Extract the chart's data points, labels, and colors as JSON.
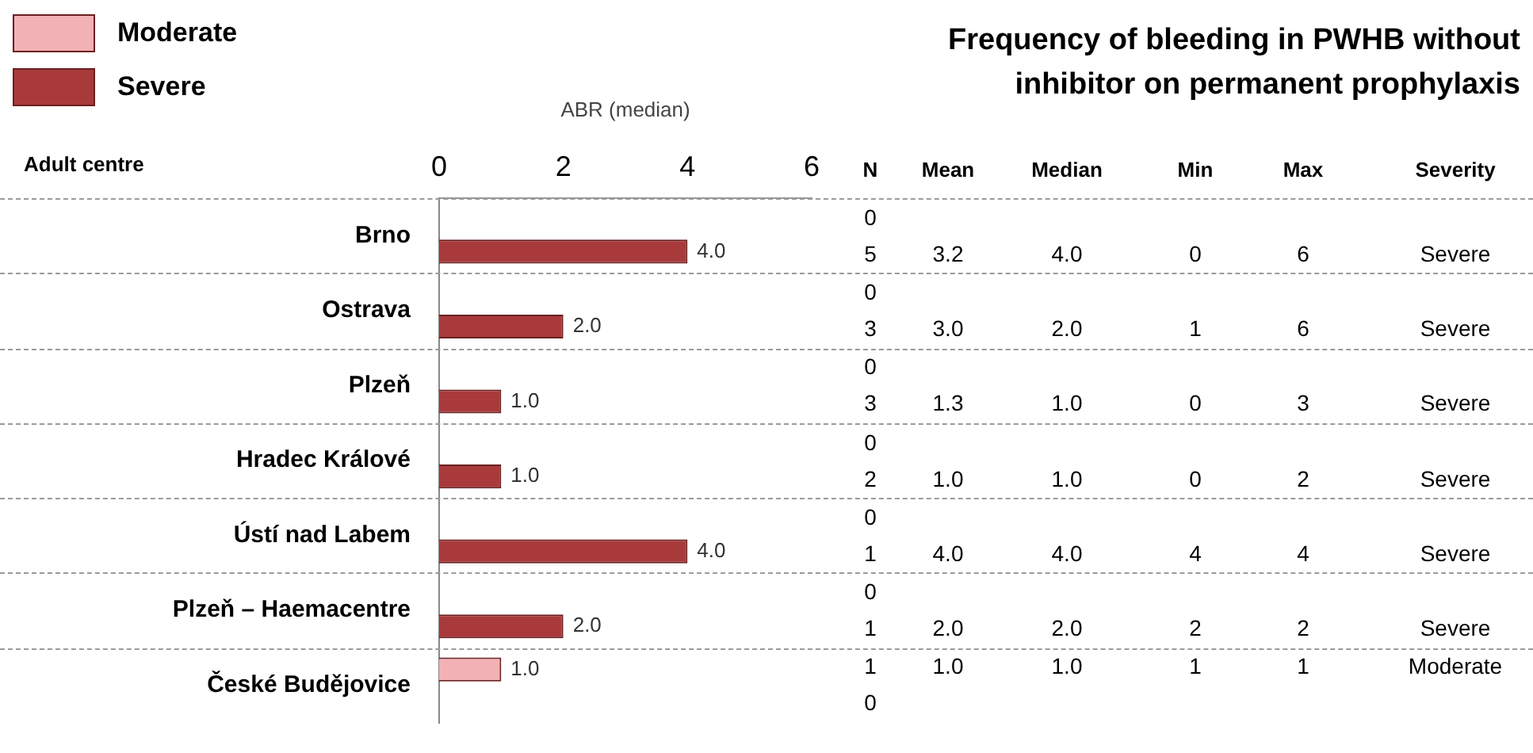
{
  "chart_data": {
    "type": "bar",
    "orientation": "horizontal",
    "title": "Frequency of bleeding in PWHB without inhibitor on permanent prophylaxis",
    "xlabel": "ABR (median)",
    "ylabel": "Adult centre",
    "categories": [
      "Brno",
      "Ostrava",
      "Plzeň",
      "Hradec Králové",
      "Ústí nad Labem",
      "Plzeň – Haemacentre",
      "České Budějovice"
    ],
    "series": [
      {
        "name": "Moderate",
        "color": "#f2b1b5",
        "values": [
          null,
          null,
          null,
          null,
          null,
          null,
          1.0
        ],
        "value_labels": [
          null,
          null,
          null,
          null,
          null,
          null,
          "1.0"
        ]
      },
      {
        "name": "Severe",
        "color": "#a83a3c",
        "values": [
          4.0,
          2.0,
          1.0,
          1.0,
          4.0,
          2.0,
          null
        ],
        "value_labels": [
          "4.0",
          "2.0",
          "1.0",
          "1.0",
          "4.0",
          "2.0",
          null
        ]
      }
    ],
    "xlim": [
      0,
      6
    ],
    "xticks": [
      0,
      2,
      4,
      6
    ],
    "legend": "top left",
    "grid": false,
    "annotations": [
      "N",
      "Mean",
      "Median",
      "Min",
      "Max",
      "Severity",
      "0",
      "5",
      "3.2",
      "4.0",
      "0",
      "6",
      "Severe",
      "0",
      "3",
      "3.0",
      "2.0",
      "1",
      "6",
      "Severe",
      "0",
      "3",
      "1.3",
      "1.0",
      "0",
      "3",
      "Severe",
      "0",
      "2",
      "1.0",
      "1.0",
      "0",
      "2",
      "Severe",
      "0",
      "1",
      "4.0",
      "4.0",
      "4",
      "4",
      "Severe",
      "0",
      "1",
      "2.0",
      "2.0",
      "2",
      "2",
      "Severe",
      "1",
      "1.0",
      "1.0",
      "1",
      "1",
      "Moderate",
      "0"
    ]
  }
}
